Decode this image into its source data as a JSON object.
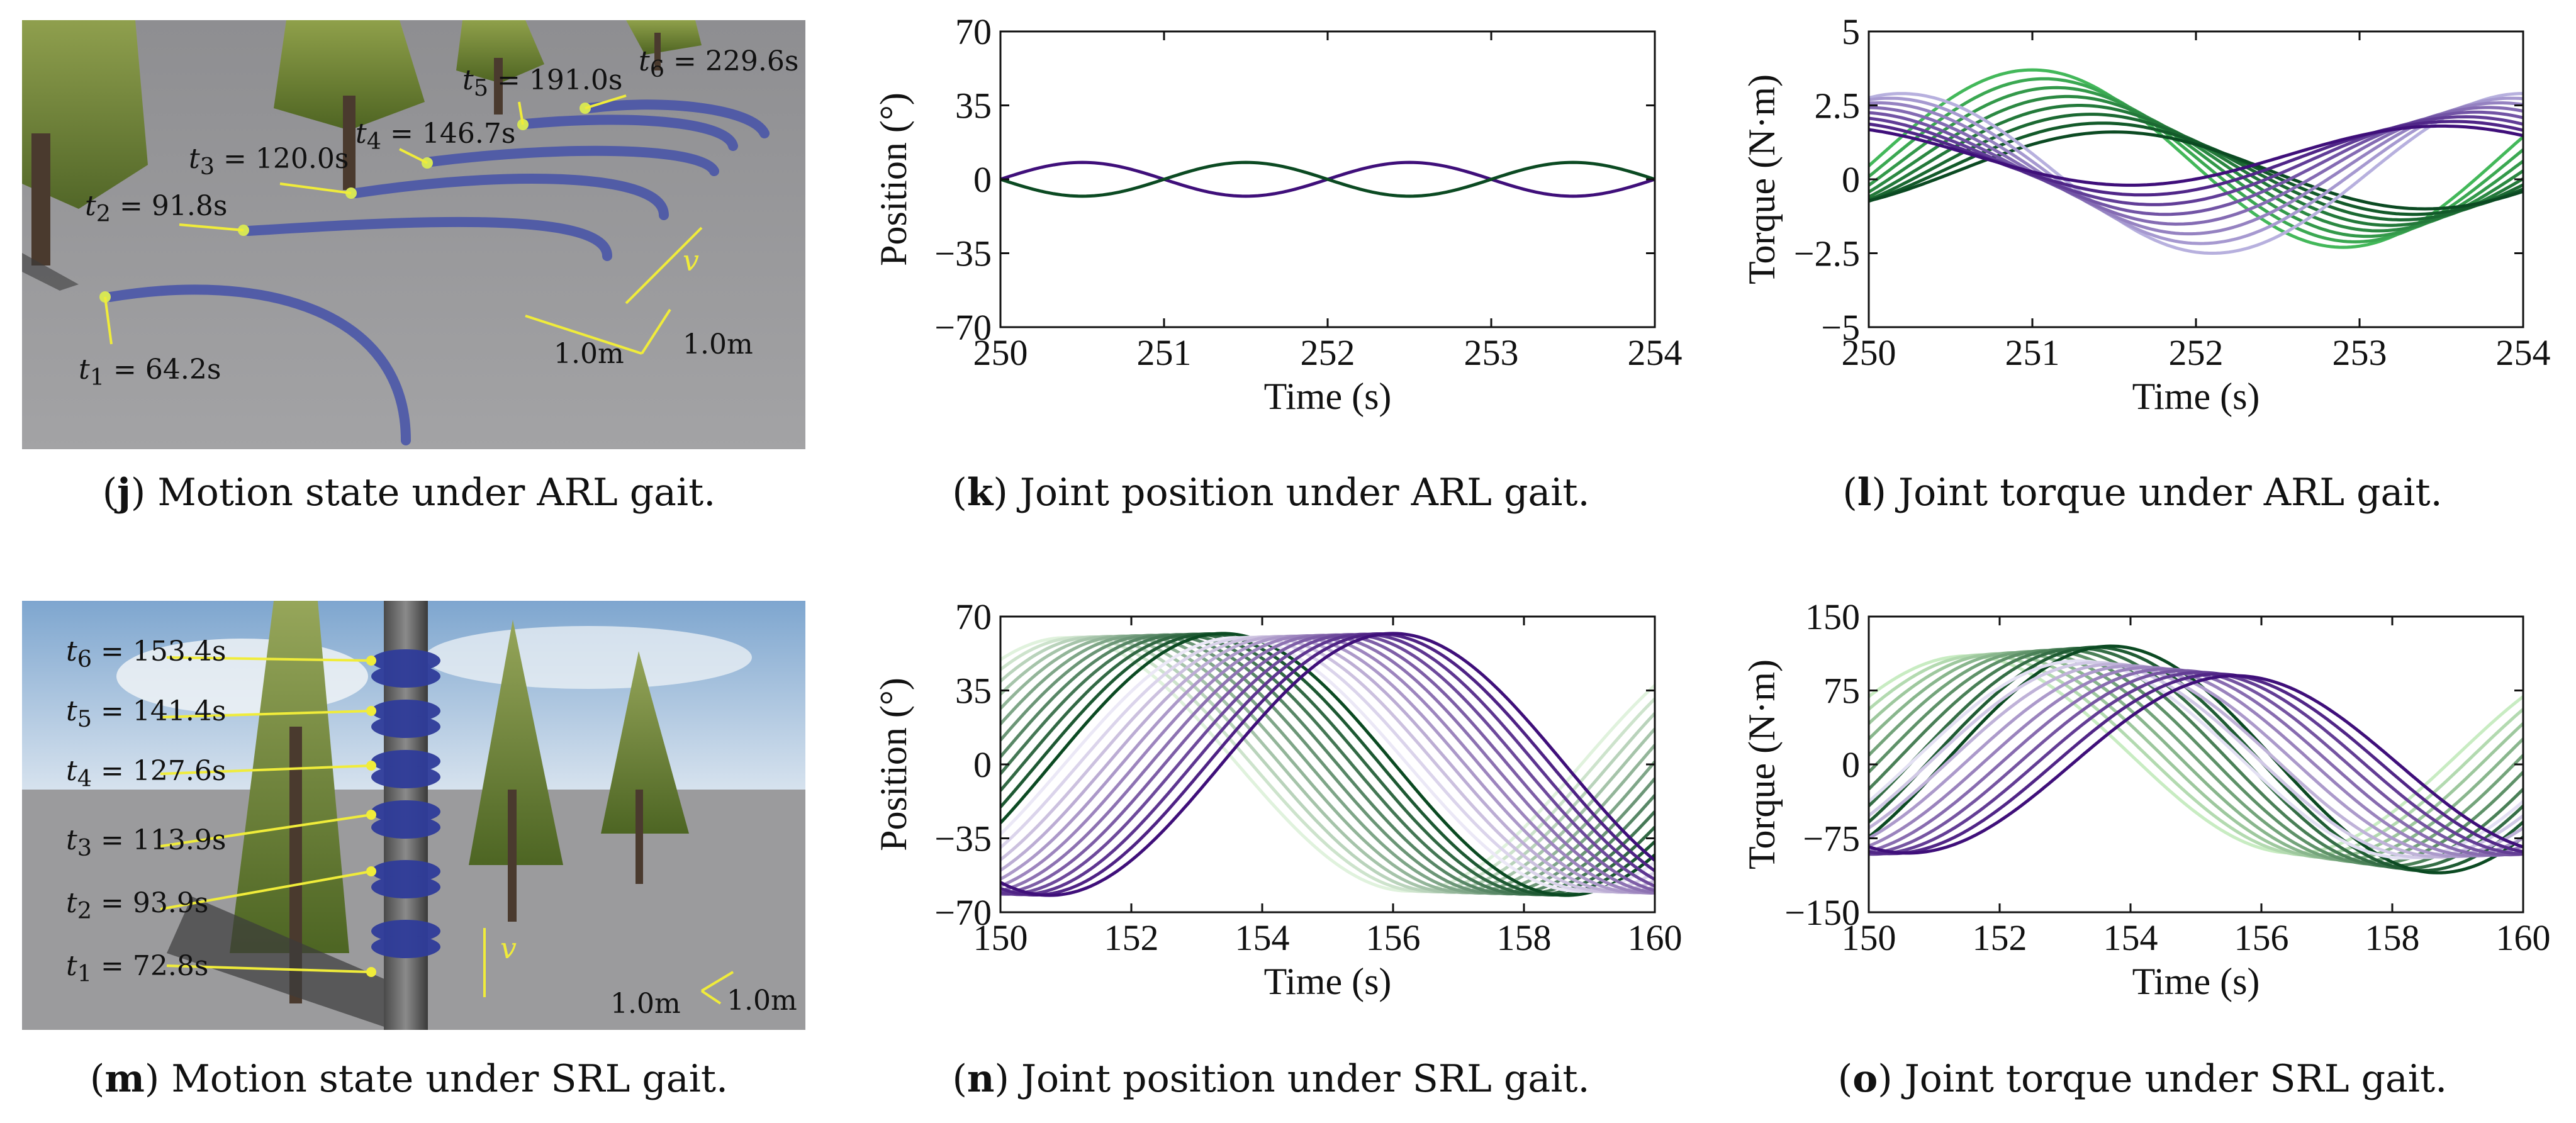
{
  "panels": {
    "j": {
      "letter": "j",
      "caption": "Motion state under ARL gait.",
      "labels": [
        {
          "sub": "1",
          "value": "= 64.2s"
        },
        {
          "sub": "2",
          "value": "= 91.8s"
        },
        {
          "sub": "3",
          "value": "= 120.0s"
        },
        {
          "sub": "4",
          "value": "= 146.7s"
        },
        {
          "sub": "5",
          "value": "= 191.0s"
        },
        {
          "sub": "6",
          "value": "= 229.6s"
        }
      ],
      "scale_a": "1.0m",
      "scale_b": "1.0m",
      "velocity": "v"
    },
    "k": {
      "letter": "k",
      "caption": "Joint position under ARL gait."
    },
    "l": {
      "letter": "l",
      "caption": "Joint torque under ARL gait."
    },
    "m": {
      "letter": "m",
      "caption": "Motion state under SRL gait.",
      "labels": [
        {
          "sub": "6",
          "value": "= 153.4s"
        },
        {
          "sub": "5",
          "value": "= 141.4s"
        },
        {
          "sub": "4",
          "value": "= 127.6s"
        },
        {
          "sub": "3",
          "value": "= 113.9s"
        },
        {
          "sub": "2",
          "value": "= 93.9s"
        },
        {
          "sub": "1",
          "value": "= 72.8s"
        }
      ],
      "scale_a": "1.0m",
      "scale_b": "1.0m",
      "velocity": "v"
    },
    "n": {
      "letter": "n",
      "caption": "Joint position under SRL gait."
    },
    "o": {
      "letter": "o",
      "caption": "Joint torque under SRL gait."
    }
  },
  "colors": {
    "green_dark": "#0b4a22",
    "green_light": "#43b85a",
    "purple_dark": "#3f0f7a",
    "purple_light": "#9d93cc"
  },
  "chart_data": [
    {
      "id": "k",
      "type": "line",
      "title": "",
      "xlabel": "Time (s)",
      "ylabel": "Position (°)",
      "xlim": [
        250,
        254
      ],
      "ylim": [
        -70,
        70
      ],
      "xticks": [
        250,
        251,
        252,
        253,
        254
      ],
      "yticks": [
        70,
        35,
        0,
        -35,
        -70
      ],
      "series": [
        {
          "name": "purple",
          "color": "#3f0f7a",
          "count": 1,
          "amp": 8,
          "offset": 0,
          "period": 2,
          "phase": 250.5,
          "spread": 0
        },
        {
          "name": "green",
          "color": "#0b4a22",
          "count": 1,
          "amp": 8,
          "offset": 0,
          "period": 2,
          "phase": 251.5,
          "spread": 0
        }
      ]
    },
    {
      "id": "l",
      "type": "line",
      "title": "",
      "xlabel": "Time (s)",
      "ylabel": "Torque (N·m)",
      "xlim": [
        250,
        254
      ],
      "ylim": [
        -5,
        5
      ],
      "xticks": [
        250,
        251,
        252,
        253,
        254
      ],
      "yticks": [
        5,
        2.5,
        0,
        -2.5,
        -5
      ],
      "series": [
        {
          "name": "green",
          "color": "#43b85a",
          "color2": "#0b4a22",
          "count": 8,
          "amp": 3.0,
          "amp2": 1.3,
          "offset": 0.7,
          "offset2": 0.3,
          "period": 3.8,
          "phase": 251.0,
          "spread": 0.5
        },
        {
          "name": "purple",
          "color": "#b7b0de",
          "color2": "#3f0f7a",
          "count": 8,
          "amp": 2.7,
          "amp2": 1.0,
          "offset": 0.2,
          "offset2": 0.8,
          "period": 3.8,
          "phase": 250.2,
          "spread": -0.5
        }
      ]
    },
    {
      "id": "n",
      "type": "line",
      "title": "",
      "xlabel": "Time (s)",
      "ylabel": "Position (°)",
      "xlim": [
        150,
        160
      ],
      "ylim": [
        -70,
        70
      ],
      "xticks": [
        150,
        152,
        154,
        156,
        158,
        160
      ],
      "yticks": [
        70,
        35,
        0,
        -35,
        -70
      ],
      "series": [
        {
          "name": "green",
          "color": "#e0f2dd",
          "color2": "#0b4a22",
          "count": 12,
          "amp": 60,
          "amp2": 62,
          "offset": 0,
          "offset2": 0,
          "period": 10.5,
          "phase": 151.0,
          "spread": 2.4
        },
        {
          "name": "purple",
          "color": "#ebe8f6",
          "color2": "#3f0f7a",
          "count": 12,
          "amp": 60,
          "amp2": 62,
          "offset": 0,
          "offset2": 0,
          "period": 10.5,
          "phase": 153.6,
          "spread": 2.4
        }
      ]
    },
    {
      "id": "o",
      "type": "line",
      "title": "",
      "xlabel": "Time (s)",
      "ylabel": "Torque (N·m)",
      "xlim": [
        150,
        160
      ],
      "ylim": [
        -150,
        150
      ],
      "xticks": [
        150,
        152,
        154,
        156,
        158,
        160
      ],
      "yticks": [
        150,
        75,
        0,
        -75,
        -150
      ],
      "series": [
        {
          "name": "green",
          "color": "#c8ecc2",
          "color2": "#0b4a22",
          "count": 10,
          "amp": 100,
          "amp2": 115,
          "offset": 10,
          "offset2": 5,
          "period": 10,
          "phase": 151.5,
          "spread": 2.2
        },
        {
          "name": "purple",
          "color": "#e3e0f3",
          "color2": "#3f0f7a",
          "count": 10,
          "amp": 100,
          "amp2": 90,
          "offset": 5,
          "offset2": 0,
          "period": 10,
          "phase": 153.2,
          "spread": 2.4
        }
      ]
    }
  ]
}
